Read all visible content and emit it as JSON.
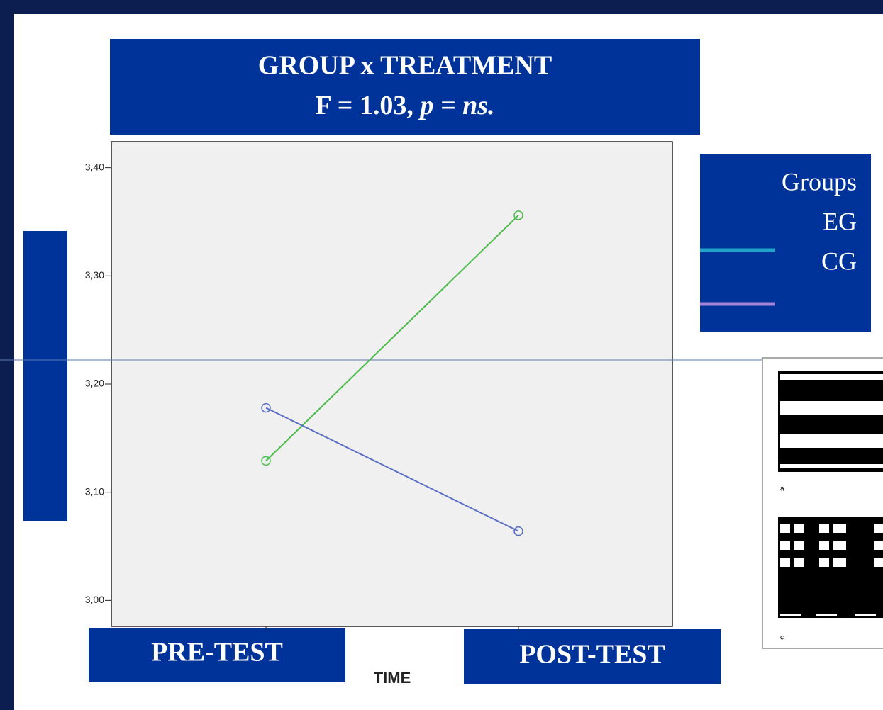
{
  "chart_data": {
    "type": "line",
    "title": "GROUP x TREATMENT",
    "subtitle": [
      "F = 1.03,",
      "p = ns."
    ],
    "categories": [
      "PRE-TEST",
      "POST-TEST"
    ],
    "x_label": "TIME",
    "series": [
      {
        "name": "EG",
        "color": "#4cbb4c",
        "legend_color": "#1fa3c9",
        "values": [
          3.129,
          3.356
        ]
      },
      {
        "name": "CG",
        "color": "#5a6fc4",
        "legend_color": "#a483dc",
        "values": [
          3.178,
          3.064
        ]
      }
    ],
    "legend_title": "Groups",
    "ylim": [
      2.976,
      3.424
    ],
    "yticks": [
      {
        "value": 3.0,
        "label": "3,00"
      },
      {
        "value": 3.1,
        "label": "3,10"
      },
      {
        "value": 3.2,
        "label": "3,20"
      },
      {
        "value": 3.3,
        "label": "3,30"
      },
      {
        "value": 3.4,
        "label": "3,40"
      }
    ]
  },
  "side_figure": {
    "labels": [
      "a",
      "c"
    ]
  }
}
